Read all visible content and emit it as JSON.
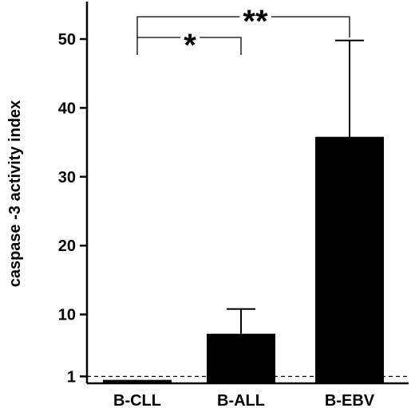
{
  "chart_data": {
    "type": "bar",
    "ylabel": "caspase -3 activity index",
    "xlabel": "",
    "categories": [
      "B-CLL",
      "B-ALL",
      "B-EBV"
    ],
    "values": [
      0.5,
      7.2,
      35.8
    ],
    "error_upper": [
      0.6,
      10.8,
      49.8
    ],
    "ylim": [
      0,
      55
    ],
    "yticks": [
      1,
      10,
      20,
      30,
      40,
      50
    ],
    "ytick_labels": [
      "1",
      "10",
      "20",
      "30",
      "40",
      "50"
    ],
    "reference_line": {
      "y": 1,
      "style": "dashed"
    },
    "bar_color": "#000000",
    "grid": false,
    "significance": [
      {
        "from": "B-CLL",
        "to": "B-ALL",
        "label": "*"
      },
      {
        "from": "B-CLL",
        "to": "B-EBV",
        "label": "**"
      }
    ]
  }
}
